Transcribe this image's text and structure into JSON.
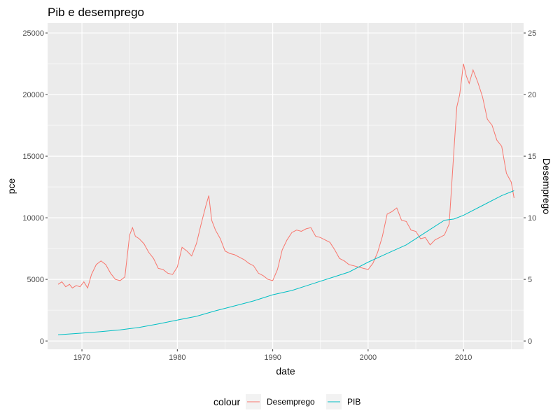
{
  "chart_data": {
    "type": "line",
    "title": "Pib e desemprego",
    "xlabel": "date",
    "ylabel": "pce",
    "ylabel_right": "Desemprego",
    "x_ticks": [
      1970,
      1980,
      1990,
      2000,
      2010
    ],
    "xlim": [
      1966.4,
      2016.3
    ],
    "y_left_ticks": [
      0,
      5000,
      10000,
      15000,
      20000,
      25000
    ],
    "ylim_left": [
      -675,
      25800
    ],
    "y_right_ticks": [
      0,
      5,
      10,
      15,
      20,
      25
    ],
    "ylim_right": [
      -0.675,
      25.8
    ],
    "legend": {
      "title": "colour",
      "position": "bottom"
    },
    "grid": true,
    "background": "#ebebeb",
    "series": [
      {
        "name": "Desemprego",
        "color": "#F8766D",
        "axis": "right",
        "x": [
          1967.5,
          1967.9,
          1968.3,
          1968.7,
          1969.0,
          1969.4,
          1969.8,
          1970.2,
          1970.6,
          1971.0,
          1971.5,
          1972.0,
          1972.5,
          1973.0,
          1973.5,
          1974.0,
          1974.5,
          1975.0,
          1975.3,
          1975.6,
          1976.0,
          1976.5,
          1977.0,
          1977.5,
          1978.0,
          1978.5,
          1979.0,
          1979.5,
          1980.0,
          1980.5,
          1981.0,
          1981.5,
          1982.0,
          1982.5,
          1983.0,
          1983.3,
          1983.6,
          1984.0,
          1984.5,
          1985.0,
          1985.5,
          1986.0,
          1986.5,
          1987.0,
          1987.5,
          1988.0,
          1988.5,
          1989.0,
          1989.5,
          1990.0,
          1990.5,
          1991.0,
          1991.5,
          1992.0,
          1992.5,
          1993.0,
          1993.5,
          1994.0,
          1994.5,
          1995.0,
          1995.5,
          1996.0,
          1996.5,
          1997.0,
          1997.5,
          1998.0,
          1998.5,
          1999.0,
          1999.5,
          2000.0,
          2000.5,
          2001.0,
          2001.5,
          2002.0,
          2002.5,
          2003.0,
          2003.5,
          2004.0,
          2004.5,
          2005.0,
          2005.5,
          2006.0,
          2006.5,
          2007.0,
          2007.5,
          2008.0,
          2008.5,
          2009.0,
          2009.3,
          2009.6,
          2010.0,
          2010.3,
          2010.6,
          2011.0,
          2011.5,
          2012.0,
          2012.5,
          2013.0,
          2013.5,
          2014.0,
          2014.5,
          2015.0,
          2015.3
        ],
        "values": [
          4.6,
          4.8,
          4.4,
          4.6,
          4.3,
          4.5,
          4.4,
          4.8,
          4.3,
          5.4,
          6.2,
          6.5,
          6.2,
          5.5,
          5.0,
          4.9,
          5.2,
          8.6,
          9.2,
          8.5,
          8.3,
          7.9,
          7.2,
          6.7,
          5.9,
          5.8,
          5.5,
          5.4,
          6.0,
          7.6,
          7.3,
          6.9,
          7.9,
          9.5,
          11.0,
          11.8,
          9.8,
          9.0,
          8.3,
          7.3,
          7.1,
          7.0,
          6.8,
          6.6,
          6.3,
          6.1,
          5.5,
          5.3,
          5.0,
          4.9,
          5.8,
          7.4,
          8.2,
          8.8,
          9.0,
          8.9,
          9.1,
          9.2,
          8.5,
          8.4,
          8.2,
          8.0,
          7.4,
          6.7,
          6.5,
          6.2,
          6.1,
          6.0,
          5.9,
          5.8,
          6.3,
          7.2,
          8.5,
          10.3,
          10.5,
          10.8,
          9.8,
          9.7,
          9.0,
          8.9,
          8.3,
          8.4,
          7.8,
          8.2,
          8.4,
          8.6,
          9.5,
          15.5,
          19.0,
          20.0,
          22.5,
          21.5,
          20.9,
          22.0,
          21.0,
          19.8,
          18.0,
          17.5,
          16.3,
          15.8,
          13.6,
          12.9,
          11.6
        ]
      },
      {
        "name": "PIB",
        "color": "#00BFC4",
        "axis": "left",
        "x": [
          1967.5,
          1970,
          1972,
          1974,
          1976,
          1978,
          1980,
          1982,
          1984,
          1986,
          1988,
          1990,
          1992,
          1994,
          1996,
          1998,
          2000,
          2002,
          2004,
          2006,
          2008,
          2009,
          2010,
          2012,
          2014,
          2015.3
        ],
        "values": [
          507,
          640,
          760,
          900,
          1100,
          1380,
          1700,
          2000,
          2450,
          2850,
          3250,
          3750,
          4100,
          4600,
          5100,
          5600,
          6400,
          7100,
          7800,
          8800,
          9800,
          9900,
          10200,
          11000,
          11800,
          12200
        ]
      }
    ]
  }
}
